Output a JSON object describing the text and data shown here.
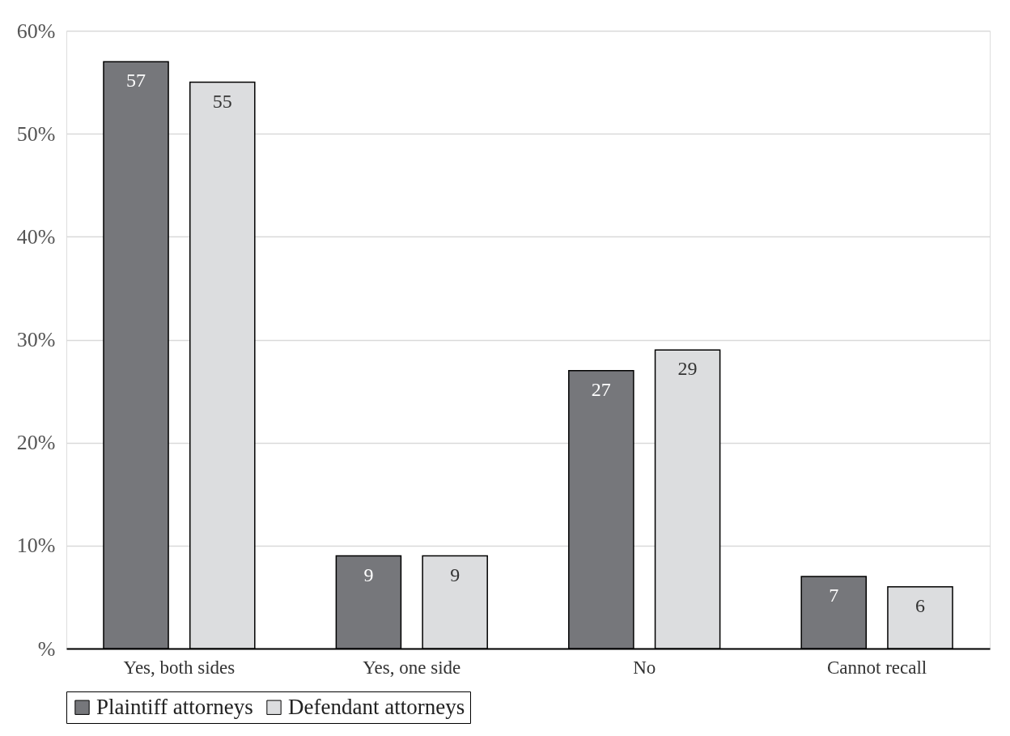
{
  "chart_data": {
    "type": "bar",
    "categories": [
      "Yes, both sides",
      "Yes, one side",
      "No",
      "Cannot recall"
    ],
    "series": [
      {
        "name": "Plaintiff attorneys",
        "color": "#76777b",
        "values": [
          57,
          9,
          27,
          7
        ]
      },
      {
        "name": "Defendant attorneys",
        "color": "#dcdddf",
        "values": [
          55,
          9,
          29,
          6
        ]
      }
    ],
    "ylim": [
      0,
      60
    ],
    "yticks": [
      {
        "value": 0,
        "label": "%"
      },
      {
        "value": 10,
        "label": "10%"
      },
      {
        "value": 20,
        "label": "20%"
      },
      {
        "value": 30,
        "label": "30%"
      },
      {
        "value": 40,
        "label": "40%"
      },
      {
        "value": 50,
        "label": "50%"
      },
      {
        "value": 60,
        "label": "60%"
      }
    ],
    "grid": "y",
    "legend": "bottom",
    "data_labels": true
  }
}
